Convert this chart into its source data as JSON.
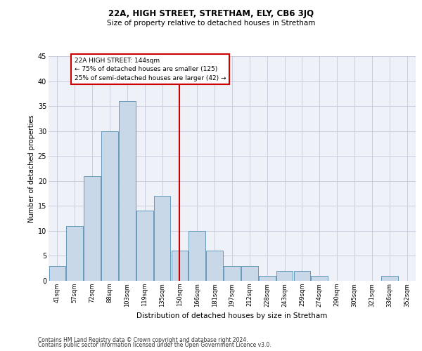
{
  "title1": "22A, HIGH STREET, STRETHAM, ELY, CB6 3JQ",
  "title2": "Size of property relative to detached houses in Stretham",
  "xlabel": "Distribution of detached houses by size in Stretham",
  "ylabel": "Number of detached properties",
  "bar_labels": [
    "41sqm",
    "57sqm",
    "72sqm",
    "88sqm",
    "103sqm",
    "119sqm",
    "135sqm",
    "150sqm",
    "166sqm",
    "181sqm",
    "197sqm",
    "212sqm",
    "228sqm",
    "243sqm",
    "259sqm",
    "274sqm",
    "290sqm",
    "305sqm",
    "321sqm",
    "336sqm",
    "352sqm"
  ],
  "bar_values": [
    3,
    11,
    21,
    30,
    36,
    14,
    17,
    6,
    10,
    6,
    3,
    3,
    1,
    2,
    2,
    1,
    0,
    0,
    0,
    1,
    0
  ],
  "bar_color": "#c8d8e8",
  "bar_edge_color": "#6699bb",
  "grid_color": "#ccccdd",
  "background_color": "#eef2f8",
  "vline_x": 7,
  "vline_color": "#cc0000",
  "annotation_title": "22A HIGH STREET: 144sqm",
  "annotation_line1": "← 75% of detached houses are smaller (125)",
  "annotation_line2": "25% of semi-detached houses are larger (42) →",
  "annotation_box_color": "#ffffff",
  "annotation_box_edge": "#cc0000",
  "footer1": "Contains HM Land Registry data © Crown copyright and database right 2024.",
  "footer2": "Contains public sector information licensed under the Open Government Licence v3.0.",
  "ylim": [
    0,
    45
  ],
  "yticks": [
    0,
    5,
    10,
    15,
    20,
    25,
    30,
    35,
    40,
    45
  ]
}
